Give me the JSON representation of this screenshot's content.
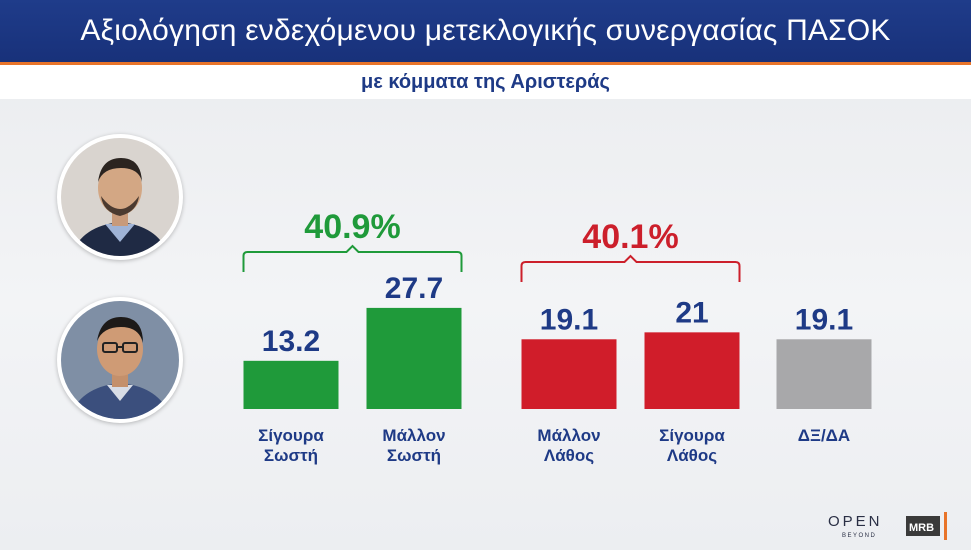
{
  "header": {
    "title": "Αξιολόγηση ενδεχόμενου μετεκλογικής συνεργασίας ΠΑΣΟΚ",
    "subtitle": "με κόμματα της Αριστεράς"
  },
  "groups": [
    {
      "total_label": "40.9%",
      "color": "#1f9a3a"
    },
    {
      "total_label": "40.1%",
      "color": "#cc1f2b"
    }
  ],
  "colors": {
    "green": "#1f9a3a",
    "red": "#d01d2a",
    "gray": "#a8a8aa",
    "label_blue": "#1e3a86"
  },
  "logos": {
    "open": "OPEN",
    "open_sub": "BEYOND",
    "mrb": "MRB"
  },
  "chart_data": {
    "type": "bar",
    "categories": [
      [
        "Σίγουρα",
        "Σωστή"
      ],
      [
        "Μάλλον",
        "Σωστή"
      ],
      [
        "Μάλλον",
        "Λάθος"
      ],
      [
        "Σίγουρα",
        "Λάθος"
      ],
      [
        "ΔΞ/ΔΑ"
      ]
    ],
    "values": [
      13.2,
      27.7,
      19.1,
      21,
      19.1
    ],
    "value_labels": [
      "13.2",
      "27.7",
      "19.1",
      "21",
      "19.1"
    ],
    "bar_colors": [
      "#1f9a3a",
      "#1f9a3a",
      "#d01d2a",
      "#d01d2a",
      "#a8a8aa"
    ],
    "group_totals": [
      {
        "label": "40.9%",
        "bars": [
          0,
          1
        ]
      },
      {
        "label": "40.1%",
        "bars": [
          2,
          3
        ]
      }
    ],
    "ylim": [
      0,
      30
    ],
    "grid": false,
    "legend": "none"
  }
}
